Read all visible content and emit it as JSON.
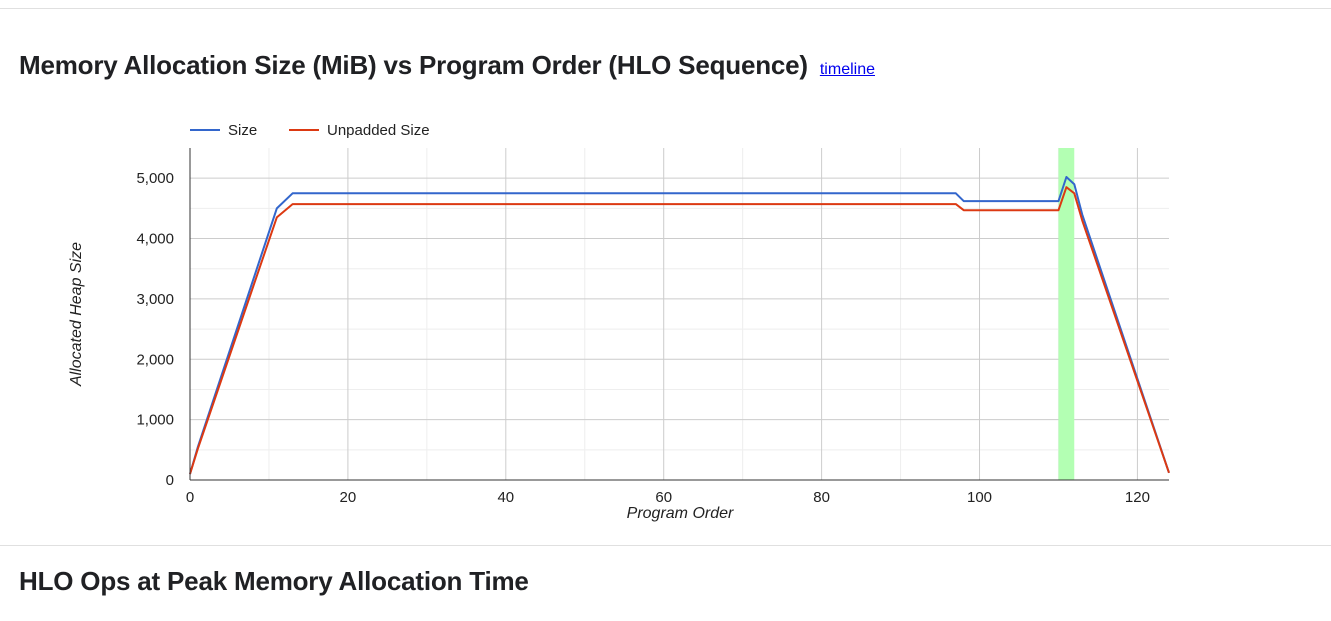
{
  "header": {
    "title": "Memory Allocation Size (MiB) vs Program Order (HLO Sequence)",
    "link_label": "timeline"
  },
  "section2": {
    "title": "HLO Ops at Peak Memory Allocation Time"
  },
  "chart_data": {
    "type": "line",
    "title": "Memory Allocation Size (MiB) vs Program Order (HLO Sequence)",
    "xlabel": "Program Order",
    "ylabel": "Allocated Heap Size",
    "xlim": [
      0,
      124
    ],
    "ylim": [
      0,
      5500
    ],
    "x_ticks": [
      0,
      20,
      40,
      60,
      80,
      100,
      120
    ],
    "x_tick_labels": [
      "0",
      "20",
      "40",
      "60",
      "80",
      "100",
      "120"
    ],
    "y_ticks": [
      0,
      1000,
      2000,
      3000,
      4000,
      5000
    ],
    "y_tick_labels": [
      "0",
      "1,000",
      "2,000",
      "3,000",
      "4,000",
      "5,000"
    ],
    "grid": true,
    "legend": "top-left",
    "highlight": {
      "x_range": [
        110,
        112
      ],
      "color": "#b3ffb3"
    },
    "series": [
      {
        "name": "Size",
        "color": "#3366cc",
        "points": [
          [
            0,
            100
          ],
          [
            1,
            550
          ],
          [
            11,
            4500
          ],
          [
            13,
            4750
          ],
          [
            97,
            4750
          ],
          [
            98,
            4620
          ],
          [
            110,
            4620
          ],
          [
            111,
            5020
          ],
          [
            112,
            4900
          ],
          [
            113,
            4400
          ],
          [
            124,
            120
          ]
        ]
      },
      {
        "name": "Unpadded Size",
        "color": "#dc3912",
        "points": [
          [
            0,
            100
          ],
          [
            1,
            520
          ],
          [
            11,
            4350
          ],
          [
            13,
            4570
          ],
          [
            97,
            4570
          ],
          [
            98,
            4470
          ],
          [
            110,
            4470
          ],
          [
            111,
            4850
          ],
          [
            112,
            4750
          ],
          [
            113,
            4300
          ],
          [
            124,
            120
          ]
        ]
      }
    ]
  }
}
